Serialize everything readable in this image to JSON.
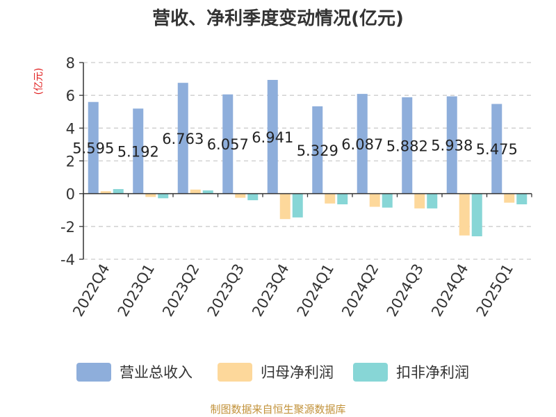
{
  "chart_data": {
    "type": "bar",
    "title": "营收、净利季度变动情况(亿元)",
    "ylabel": "(亿元)",
    "ylim": [
      -4,
      8
    ],
    "yticks": [
      -4,
      -2,
      0,
      2,
      4,
      6,
      8
    ],
    "grid": true,
    "legend_position": "bottom",
    "categories": [
      "2022Q4",
      "2023Q1",
      "2023Q2",
      "2023Q3",
      "2023Q4",
      "2024Q1",
      "2024Q2",
      "2024Q3",
      "2024Q4",
      "2025Q1"
    ],
    "series": [
      {
        "name": "营业总收入",
        "color": "#8eaedb",
        "values": [
          5.595,
          5.192,
          6.763,
          6.057,
          6.941,
          5.329,
          6.087,
          5.882,
          5.938,
          5.475
        ],
        "labels": [
          "5.595",
          "5.192",
          "6.763",
          "6.057",
          "6.941",
          "5.329",
          "6.087",
          "5.882",
          "5.938",
          "5.475"
        ]
      },
      {
        "name": "归母净利润",
        "color": "#fdd89b",
        "values": [
          0.15,
          -0.2,
          0.25,
          -0.25,
          -1.55,
          -0.6,
          -0.8,
          -0.9,
          -2.55,
          -0.55
        ]
      },
      {
        "name": "扣非净利润",
        "color": "#87d6d6",
        "values": [
          0.28,
          -0.28,
          0.2,
          -0.4,
          -1.45,
          -0.65,
          -0.85,
          -0.9,
          -2.6,
          -0.65
        ]
      }
    ]
  },
  "footer": "制图数据来自恒生聚源数据库"
}
